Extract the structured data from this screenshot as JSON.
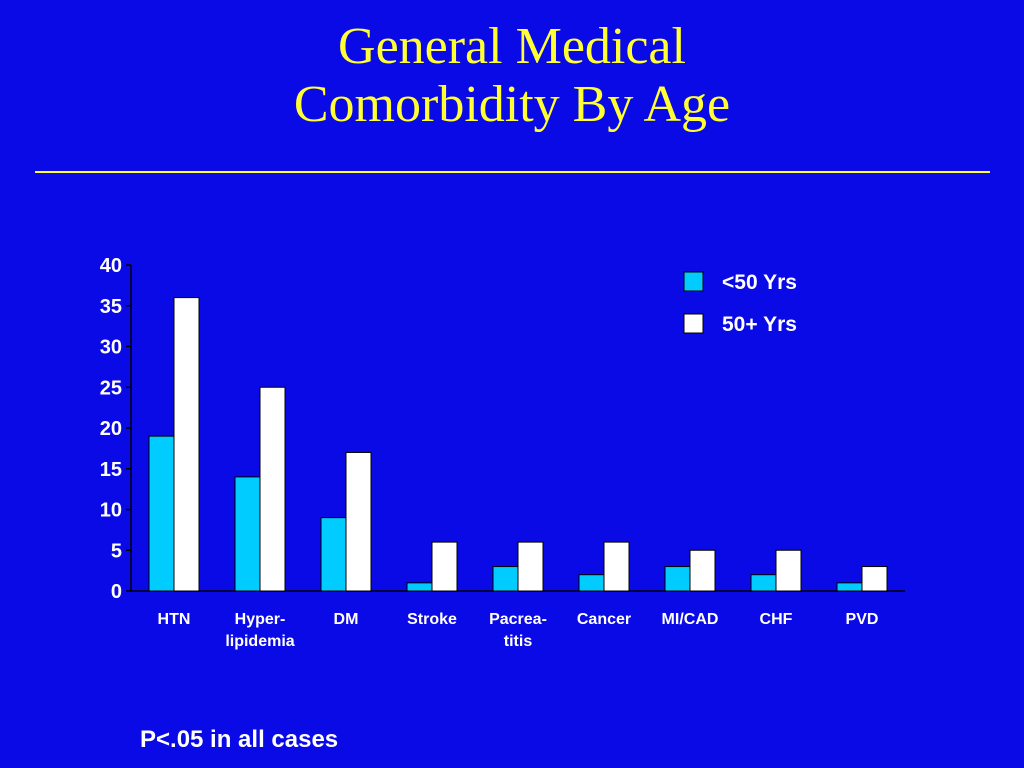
{
  "slide": {
    "title_line1": "General Medical",
    "title_line2": "Comorbidity By Age",
    "footnote": "P<.05 in all cases"
  },
  "colors": {
    "background": "#0a0ae6",
    "title": "#ffff33",
    "text": "#ffffff",
    "series_under50": "#00ccff",
    "series_50plus": "#ffffff"
  },
  "chart_data": {
    "type": "bar",
    "title": "",
    "xlabel": "",
    "ylabel": "",
    "ylim": [
      0,
      40
    ],
    "yticks": [
      0,
      5,
      10,
      15,
      20,
      25,
      30,
      35,
      40
    ],
    "grid": false,
    "legend_position": "top-right",
    "categories": [
      [
        "HTN"
      ],
      [
        "Hyper-",
        "lipidemia"
      ],
      [
        "DM"
      ],
      [
        "Stroke"
      ],
      [
        "Pacrea-",
        "titis"
      ],
      [
        "Cancer"
      ],
      [
        "MI/CAD"
      ],
      [
        "CHF"
      ],
      [
        "PVD"
      ]
    ],
    "series": [
      {
        "name": "<50 Yrs",
        "color": "#00ccff",
        "values": [
          19,
          14,
          9,
          1,
          3,
          2,
          3,
          2,
          1
        ]
      },
      {
        "name": "50+ Yrs",
        "color": "#ffffff",
        "values": [
          36,
          25,
          17,
          6,
          6,
          6,
          5,
          5,
          3
        ]
      }
    ]
  }
}
